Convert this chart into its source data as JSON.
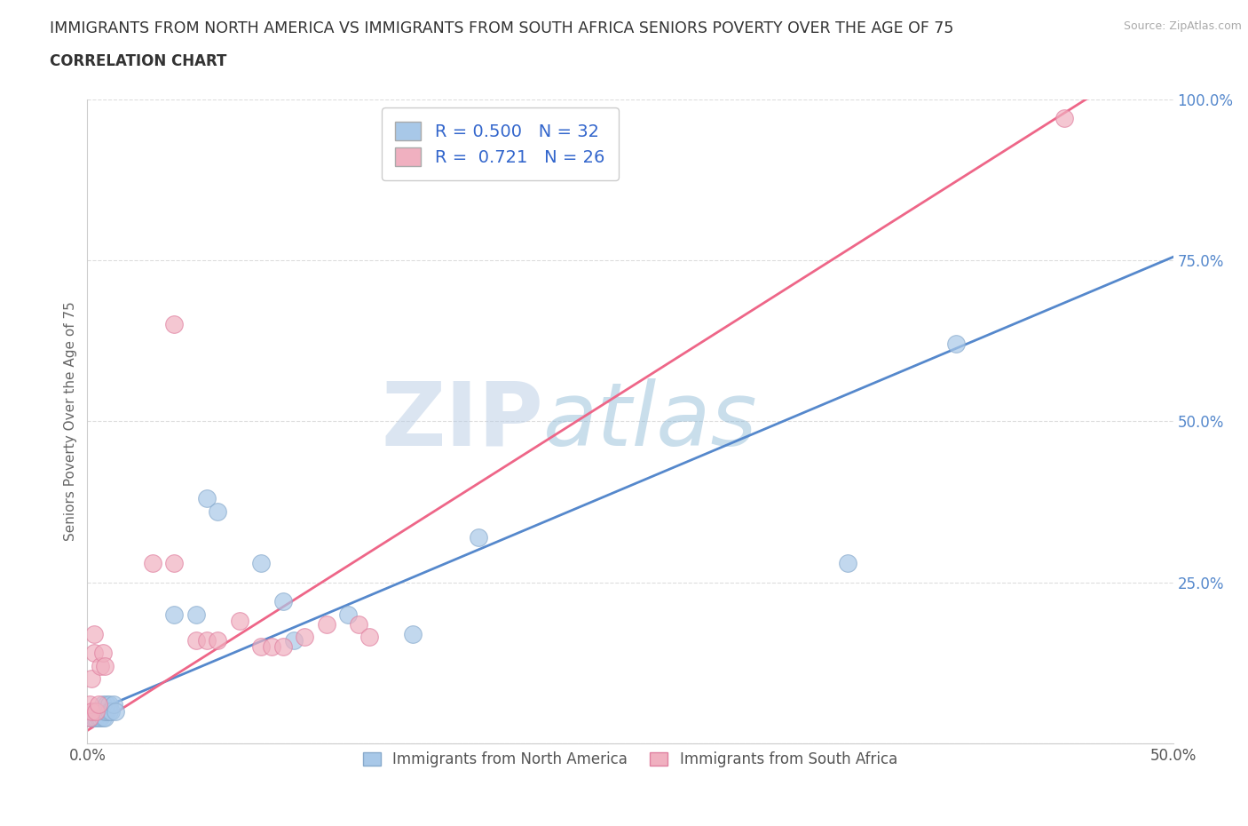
{
  "title": "IMMIGRANTS FROM NORTH AMERICA VS IMMIGRANTS FROM SOUTH AFRICA SENIORS POVERTY OVER THE AGE OF 75",
  "subtitle": "CORRELATION CHART",
  "source": "Source: ZipAtlas.com",
  "ylabel": "Seniors Poverty Over the Age of 75",
  "xlim": [
    0,
    0.5
  ],
  "ylim": [
    0,
    1.0
  ],
  "xticks": [
    0.0,
    0.1,
    0.2,
    0.3,
    0.4,
    0.5
  ],
  "xticklabels": [
    "0.0%",
    "",
    "",
    "",
    "",
    "50.0%"
  ],
  "yticks": [
    0.0,
    0.25,
    0.5,
    0.75,
    1.0
  ],
  "yticklabels": [
    "",
    "25.0%",
    "50.0%",
    "75.0%",
    "100.0%"
  ],
  "blue_color": "#a8c8e8",
  "pink_color": "#f0b0c0",
  "blue_edge_color": "#88aacc",
  "pink_edge_color": "#e080a0",
  "blue_line_color": "#5588cc",
  "pink_line_color": "#ee6688",
  "R_blue": 0.5,
  "N_blue": 32,
  "R_pink": 0.721,
  "N_pink": 26,
  "legend_label_blue": "Immigrants from North America",
  "legend_label_pink": "Immigrants from South Africa",
  "blue_scatter_x": [
    0.001,
    0.002,
    0.003,
    0.003,
    0.004,
    0.005,
    0.005,
    0.006,
    0.006,
    0.007,
    0.007,
    0.008,
    0.008,
    0.009,
    0.009,
    0.01,
    0.01,
    0.011,
    0.012,
    0.013,
    0.04,
    0.05,
    0.055,
    0.06,
    0.08,
    0.09,
    0.095,
    0.12,
    0.15,
    0.18,
    0.35,
    0.4
  ],
  "blue_scatter_y": [
    0.04,
    0.04,
    0.04,
    0.05,
    0.04,
    0.04,
    0.05,
    0.04,
    0.05,
    0.04,
    0.06,
    0.04,
    0.05,
    0.05,
    0.06,
    0.06,
    0.05,
    0.05,
    0.06,
    0.05,
    0.2,
    0.2,
    0.38,
    0.36,
    0.28,
    0.22,
    0.16,
    0.2,
    0.17,
    0.32,
    0.28,
    0.62
  ],
  "pink_scatter_x": [
    0.001,
    0.001,
    0.002,
    0.002,
    0.003,
    0.003,
    0.004,
    0.005,
    0.006,
    0.007,
    0.008,
    0.03,
    0.04,
    0.04,
    0.05,
    0.055,
    0.06,
    0.07,
    0.08,
    0.085,
    0.09,
    0.1,
    0.11,
    0.125,
    0.13,
    0.45
  ],
  "pink_scatter_y": [
    0.04,
    0.06,
    0.05,
    0.1,
    0.14,
    0.17,
    0.05,
    0.06,
    0.12,
    0.14,
    0.12,
    0.28,
    0.65,
    0.28,
    0.16,
    0.16,
    0.16,
    0.19,
    0.15,
    0.15,
    0.15,
    0.165,
    0.185,
    0.185,
    0.165,
    0.97
  ],
  "blue_line_x": [
    0.0,
    0.5
  ],
  "blue_line_y": [
    0.045,
    0.755
  ],
  "pink_line_x": [
    0.0,
    0.46
  ],
  "pink_line_y": [
    0.02,
    1.0
  ],
  "background_color": "#ffffff",
  "watermark_zip": "ZIP",
  "watermark_atlas": "atlas",
  "grid_color": "#dddddd"
}
